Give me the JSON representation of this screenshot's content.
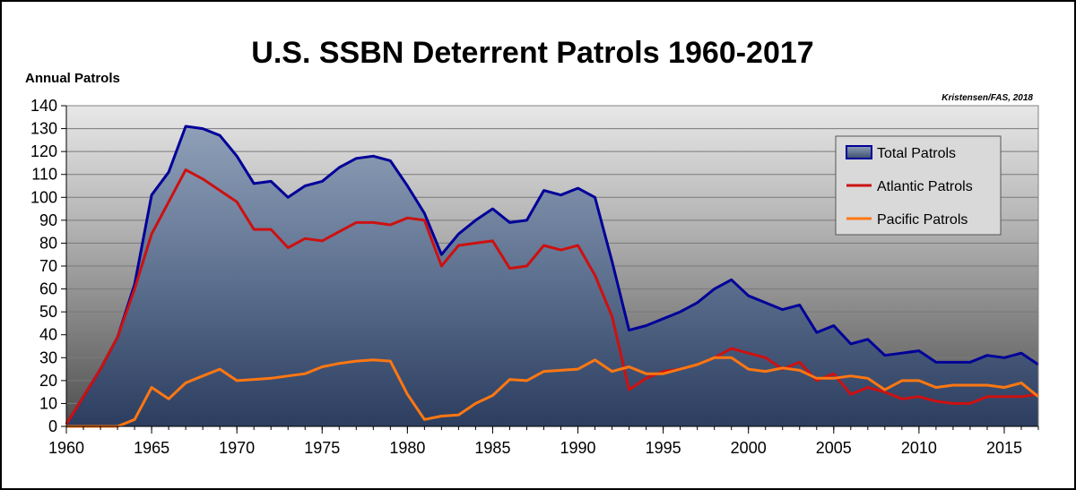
{
  "chart_data": {
    "type": "line",
    "title": "U.S. SSBN Deterrent Patrols 1960-2017",
    "ylabel": "Annual Patrols",
    "xlabel": "",
    "credit": "Kristensen/FAS, 2018",
    "ylim": [
      0,
      140
    ],
    "xlim": [
      1960,
      2017
    ],
    "yticks": [
      0,
      10,
      20,
      30,
      40,
      50,
      60,
      70,
      80,
      90,
      100,
      110,
      120,
      130,
      140
    ],
    "xticks": [
      1960,
      1965,
      1970,
      1975,
      1980,
      1985,
      1990,
      1995,
      2000,
      2005,
      2010,
      2015
    ],
    "legend_position": "top-right",
    "x": [
      1960,
      1961,
      1962,
      1963,
      1964,
      1965,
      1966,
      1967,
      1968,
      1969,
      1970,
      1971,
      1972,
      1973,
      1974,
      1975,
      1976,
      1977,
      1978,
      1979,
      1980,
      1981,
      1982,
      1983,
      1984,
      1985,
      1986,
      1987,
      1988,
      1989,
      1990,
      1991,
      1992,
      1993,
      1994,
      1995,
      1996,
      1997,
      1998,
      1999,
      2000,
      2001,
      2002,
      2003,
      2004,
      2005,
      2006,
      2007,
      2008,
      2009,
      2010,
      2011,
      2012,
      2013,
      2014,
      2015,
      2016,
      2017
    ],
    "series": [
      {
        "name": "Total Patrols",
        "color": "#000099",
        "style": "area",
        "values": [
          1,
          13,
          25,
          39,
          62,
          101,
          111,
          131,
          130,
          127,
          118,
          106,
          107,
          100,
          105,
          107,
          113,
          117,
          118,
          116,
          105,
          93,
          75,
          84,
          90,
          95,
          89,
          90,
          103,
          101,
          104,
          100,
          72,
          42,
          44,
          47,
          50,
          54,
          60,
          64,
          57,
          54,
          51,
          53,
          41,
          44,
          36,
          38,
          31,
          32,
          33,
          28,
          28,
          28,
          31,
          30,
          32,
          27
        ]
      },
      {
        "name": "Atlantic Patrols",
        "color": "#cc1111",
        "style": "line",
        "values": [
          1,
          13,
          25,
          39,
          60,
          84,
          98,
          112,
          108,
          103,
          98,
          86,
          86,
          78,
          82,
          81,
          85,
          89,
          89,
          88,
          91,
          90,
          70,
          79,
          80,
          81,
          69,
          70,
          79,
          77,
          79,
          66,
          48,
          16,
          21,
          24,
          25,
          27,
          30,
          34,
          32,
          30,
          25,
          28,
          20,
          23,
          14,
          17,
          15,
          12,
          13,
          11,
          10,
          10,
          13,
          13,
          13,
          14
        ]
      },
      {
        "name": "Pacific Patrols",
        "color": "#ff7711",
        "style": "line",
        "values": [
          0,
          0,
          0,
          0,
          3,
          17,
          12,
          19,
          22,
          25,
          20,
          20.5,
          21,
          22,
          23,
          26,
          27.5,
          28.5,
          29,
          28.5,
          14,
          3,
          4.5,
          5,
          10,
          13.5,
          20.5,
          20,
          24,
          24.5,
          25,
          29,
          24,
          26,
          23,
          23,
          25,
          27,
          30,
          30,
          25,
          24,
          25.5,
          24.5,
          21,
          21,
          22,
          21,
          16,
          20,
          20,
          17,
          18,
          18,
          18,
          17,
          19,
          13
        ]
      }
    ]
  }
}
